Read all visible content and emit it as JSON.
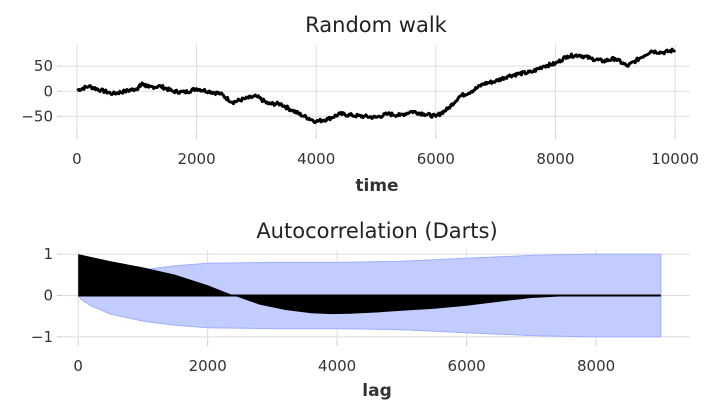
{
  "chart_data": [
    {
      "type": "line",
      "title": "Random walk",
      "xlabel": "time",
      "ylabel": "",
      "xlim": [
        -250,
        10250
      ],
      "ylim": [
        -85,
        92
      ],
      "xticks": [
        0,
        2000,
        4000,
        6000,
        8000,
        10000
      ],
      "xtick_labels": [
        "0",
        "2000",
        "4000",
        "6000",
        "8000",
        "10000"
      ],
      "yticks": [
        50,
        0,
        -50
      ],
      "ytick_labels": [
        "50",
        "0",
        "−50"
      ],
      "grid": true,
      "line_color": "#000000",
      "series": [
        {
          "x": [
            0,
            200,
            400,
            600,
            800,
            1000,
            1100,
            1200,
            1400,
            1600,
            1800,
            2000,
            2200,
            2400,
            2600,
            2800,
            3000,
            3200,
            3400,
            3600,
            3800,
            4000,
            4200,
            4400,
            4600,
            4800,
            5000,
            5200,
            5400,
            5600,
            5800,
            6000,
            6200,
            6400,
            6600,
            6800,
            7000,
            7200,
            7400,
            7600,
            7800,
            8000,
            8200,
            8400,
            8600,
            8800,
            9000,
            9200,
            9400,
            9600,
            9800,
            10000
          ],
          "y": [
            2,
            10,
            2,
            -5,
            0,
            5,
            15,
            8,
            10,
            0,
            -2,
            5,
            0,
            -5,
            -22,
            -15,
            -10,
            -25,
            -25,
            -38,
            -50,
            -60,
            -55,
            -45,
            -48,
            -50,
            -52,
            -45,
            -48,
            -40,
            -45,
            -50,
            -35,
            -10,
            0,
            15,
            20,
            30,
            35,
            38,
            50,
            55,
            70,
            72,
            65,
            60,
            65,
            50,
            65,
            80,
            77,
            82
          ]
        }
      ]
    },
    {
      "type": "area",
      "title": "Autocorrelation (Darts)",
      "xlabel": "lag",
      "ylabel": "",
      "xlim": [
        -250,
        9450
      ],
      "ylim": [
        -1.1,
        1.1
      ],
      "xticks": [
        0,
        2000,
        4000,
        6000,
        8000
      ],
      "xtick_labels": [
        "0",
        "2000",
        "4000",
        "6000",
        "8000"
      ],
      "yticks": [
        1,
        0,
        -1
      ],
      "ytick_labels": [
        "1",
        "0",
        "−1"
      ],
      "grid": true,
      "acf_color": "#000000",
      "band_color": "#c2ccff",
      "band_edge_color": "#9eb0ff",
      "acf": {
        "x": [
          0,
          200,
          500,
          1000,
          1500,
          2000,
          2400,
          2800,
          3200,
          3600,
          3900,
          4200,
          4600,
          5000,
          5500,
          6000,
          6500,
          7000,
          7500,
          8000,
          8500,
          9000
        ],
        "y": [
          1.0,
          0.93,
          0.83,
          0.68,
          0.5,
          0.25,
          0.0,
          -0.22,
          -0.35,
          -0.43,
          -0.45,
          -0.44,
          -0.41,
          -0.37,
          -0.32,
          -0.25,
          -0.15,
          -0.06,
          -0.02,
          0.0,
          0.0,
          0.0
        ]
      },
      "confidence_band": {
        "x": [
          0,
          50,
          200,
          500,
          1000,
          1500,
          2000,
          3000,
          4000,
          5000,
          6000,
          7000,
          7500,
          8000,
          8500,
          9000
        ],
        "upper": [
          0.0,
          0.1,
          0.25,
          0.45,
          0.62,
          0.72,
          0.78,
          0.8,
          0.8,
          0.83,
          0.9,
          0.97,
          0.99,
          1.0,
          1.0,
          1.0
        ],
        "lower": [
          0.0,
          -0.1,
          -0.25,
          -0.45,
          -0.62,
          -0.72,
          -0.78,
          -0.8,
          -0.8,
          -0.83,
          -0.9,
          -0.97,
          -0.99,
          -1.0,
          -1.0,
          -1.0
        ]
      }
    }
  ]
}
